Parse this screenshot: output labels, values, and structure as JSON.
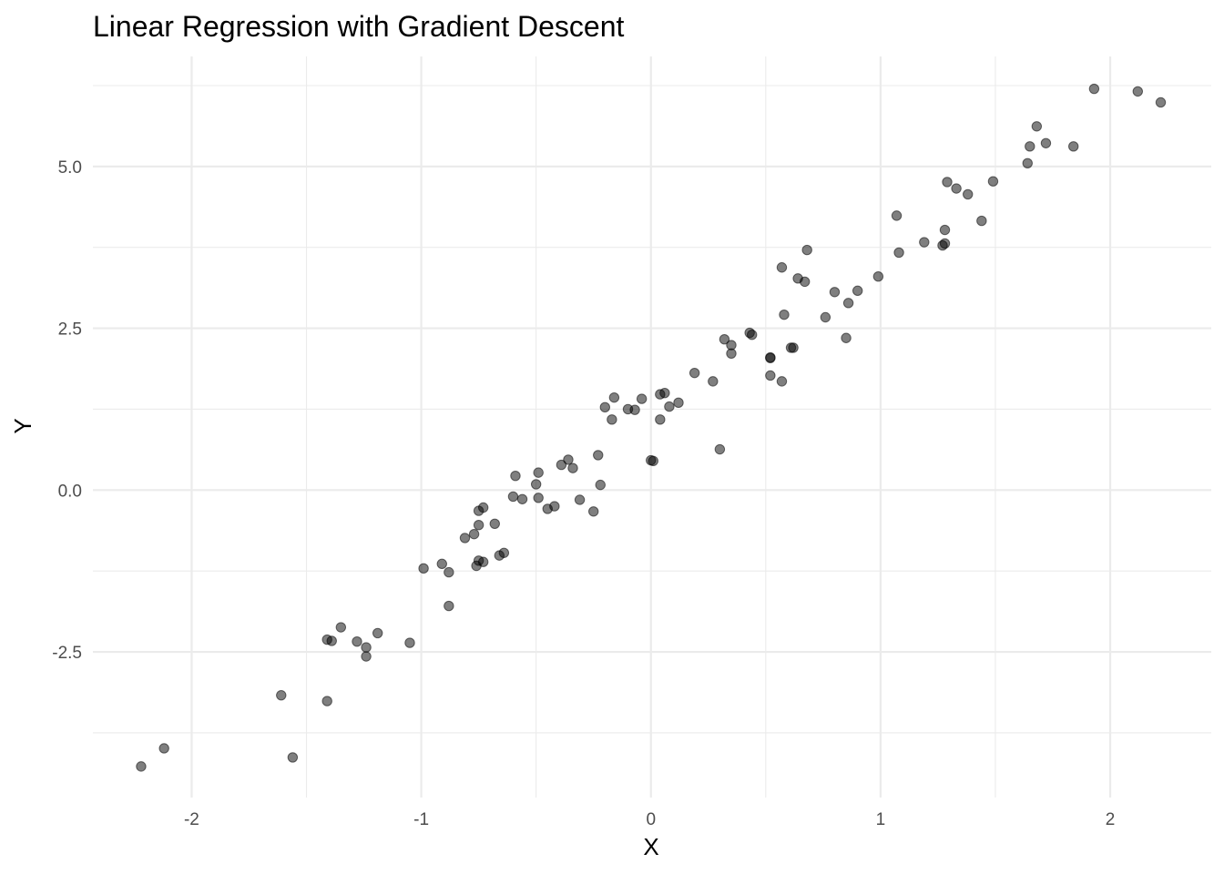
{
  "chart_data": {
    "type": "scatter",
    "title": "Linear Regression with Gradient Descent",
    "xlabel": "X",
    "ylabel": "Y",
    "xlim": [
      -2.43,
      2.44
    ],
    "ylim": [
      -4.75,
      6.7
    ],
    "xticks": [
      -2,
      -1,
      0,
      1,
      2
    ],
    "xtick_labels": [
      "-2",
      "-1",
      "0",
      "1",
      "2"
    ],
    "yticks": [
      -2.5,
      0,
      2.5,
      5
    ],
    "ytick_labels": [
      "-2.5",
      "0.0",
      "2.5",
      "5.0"
    ],
    "grid": true,
    "legend": "none",
    "point_color": "#000000",
    "point_alpha": 0.5,
    "points": [
      {
        "x": -2.22,
        "y": -4.27
      },
      {
        "x": -2.12,
        "y": -3.99
      },
      {
        "x": -1.61,
        "y": -3.17
      },
      {
        "x": -1.56,
        "y": -4.13
      },
      {
        "x": -1.41,
        "y": -3.26
      },
      {
        "x": -1.41,
        "y": -2.31
      },
      {
        "x": -1.39,
        "y": -2.33
      },
      {
        "x": -1.35,
        "y": -2.12
      },
      {
        "x": -1.28,
        "y": -2.34
      },
      {
        "x": -1.24,
        "y": -2.43
      },
      {
        "x": -1.24,
        "y": -2.57
      },
      {
        "x": -1.19,
        "y": -2.21
      },
      {
        "x": -1.05,
        "y": -2.36
      },
      {
        "x": -0.99,
        "y": -1.21
      },
      {
        "x": -0.91,
        "y": -1.14
      },
      {
        "x": -0.88,
        "y": -1.27
      },
      {
        "x": -0.88,
        "y": -1.79
      },
      {
        "x": -0.81,
        "y": -0.74
      },
      {
        "x": -0.77,
        "y": -0.68
      },
      {
        "x": -0.76,
        "y": -1.17
      },
      {
        "x": -0.75,
        "y": -1.09
      },
      {
        "x": -0.75,
        "y": -0.54
      },
      {
        "x": -0.75,
        "y": -0.32
      },
      {
        "x": -0.73,
        "y": -0.27
      },
      {
        "x": -0.73,
        "y": -1.11
      },
      {
        "x": -0.68,
        "y": -0.52
      },
      {
        "x": -0.66,
        "y": -1.01
      },
      {
        "x": -0.64,
        "y": -0.97
      },
      {
        "x": -0.6,
        "y": -0.1
      },
      {
        "x": -0.59,
        "y": 0.22
      },
      {
        "x": -0.56,
        "y": -0.14
      },
      {
        "x": -0.5,
        "y": 0.09
      },
      {
        "x": -0.49,
        "y": 0.27
      },
      {
        "x": -0.49,
        "y": -0.12
      },
      {
        "x": -0.45,
        "y": -0.29
      },
      {
        "x": -0.42,
        "y": -0.25
      },
      {
        "x": -0.39,
        "y": 0.39
      },
      {
        "x": -0.36,
        "y": 0.47
      },
      {
        "x": -0.34,
        "y": 0.34
      },
      {
        "x": -0.31,
        "y": -0.15
      },
      {
        "x": -0.25,
        "y": -0.33
      },
      {
        "x": -0.23,
        "y": 0.54
      },
      {
        "x": -0.22,
        "y": 0.08
      },
      {
        "x": -0.2,
        "y": 1.28
      },
      {
        "x": -0.17,
        "y": 1.09
      },
      {
        "x": -0.16,
        "y": 1.43
      },
      {
        "x": -0.1,
        "y": 1.25
      },
      {
        "x": -0.07,
        "y": 1.24
      },
      {
        "x": -0.04,
        "y": 1.41
      },
      {
        "x": 0.0,
        "y": 0.46
      },
      {
        "x": 0.01,
        "y": 0.45
      },
      {
        "x": 0.04,
        "y": 1.48
      },
      {
        "x": 0.04,
        "y": 1.09
      },
      {
        "x": 0.06,
        "y": 1.5
      },
      {
        "x": 0.08,
        "y": 1.29
      },
      {
        "x": 0.12,
        "y": 1.35
      },
      {
        "x": 0.19,
        "y": 1.81
      },
      {
        "x": 0.27,
        "y": 1.68
      },
      {
        "x": 0.3,
        "y": 0.63
      },
      {
        "x": 0.32,
        "y": 2.33
      },
      {
        "x": 0.35,
        "y": 2.24
      },
      {
        "x": 0.35,
        "y": 2.11
      },
      {
        "x": 0.43,
        "y": 2.43
      },
      {
        "x": 0.44,
        "y": 2.4
      },
      {
        "x": 0.52,
        "y": 2.05
      },
      {
        "x": 0.52,
        "y": 2.04
      },
      {
        "x": 0.52,
        "y": 1.77
      },
      {
        "x": 0.57,
        "y": 1.68
      },
      {
        "x": 0.57,
        "y": 3.44
      },
      {
        "x": 0.58,
        "y": 2.71
      },
      {
        "x": 0.61,
        "y": 2.2
      },
      {
        "x": 0.62,
        "y": 2.2
      },
      {
        "x": 0.64,
        "y": 3.27
      },
      {
        "x": 0.67,
        "y": 3.22
      },
      {
        "x": 0.68,
        "y": 3.71
      },
      {
        "x": 0.76,
        "y": 2.67
      },
      {
        "x": 0.8,
        "y": 3.06
      },
      {
        "x": 0.85,
        "y": 2.35
      },
      {
        "x": 0.86,
        "y": 2.89
      },
      {
        "x": 0.9,
        "y": 3.08
      },
      {
        "x": 0.99,
        "y": 3.3
      },
      {
        "x": 1.07,
        "y": 4.24
      },
      {
        "x": 1.08,
        "y": 3.67
      },
      {
        "x": 1.19,
        "y": 3.83
      },
      {
        "x": 1.27,
        "y": 3.78
      },
      {
        "x": 1.28,
        "y": 3.81
      },
      {
        "x": 1.28,
        "y": 4.02
      },
      {
        "x": 1.29,
        "y": 4.76
      },
      {
        "x": 1.33,
        "y": 4.66
      },
      {
        "x": 1.38,
        "y": 4.57
      },
      {
        "x": 1.44,
        "y": 4.16
      },
      {
        "x": 1.49,
        "y": 4.77
      },
      {
        "x": 1.64,
        "y": 5.05
      },
      {
        "x": 1.65,
        "y": 5.31
      },
      {
        "x": 1.68,
        "y": 5.62
      },
      {
        "x": 1.72,
        "y": 5.36
      },
      {
        "x": 1.84,
        "y": 5.31
      },
      {
        "x": 1.93,
        "y": 6.2
      },
      {
        "x": 2.12,
        "y": 6.16
      },
      {
        "x": 2.22,
        "y": 5.99
      }
    ]
  }
}
